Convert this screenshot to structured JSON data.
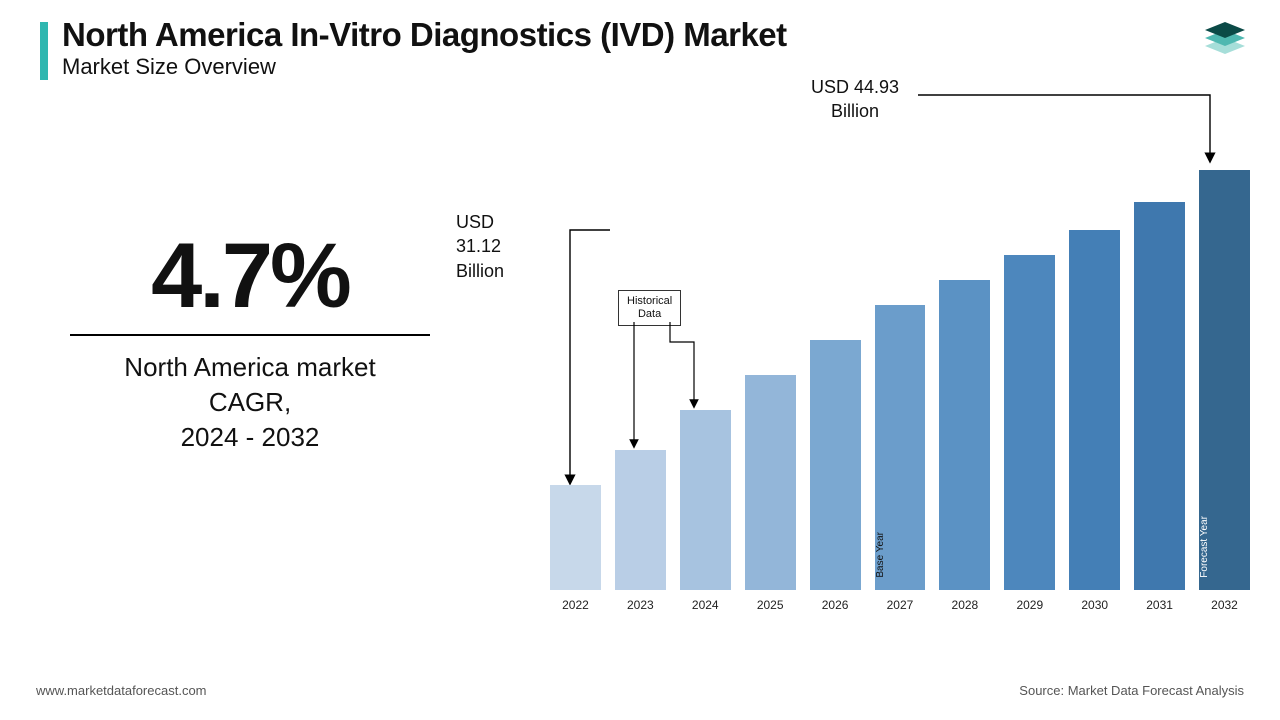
{
  "header": {
    "title": "North America In-Vitro Diagnostics (IVD) Market",
    "subtitle": "Market Size Overview",
    "accent_color": "#2fb7b0"
  },
  "cagr": {
    "value": "4.7%",
    "description_l1": "North America market",
    "description_l2": "CAGR,",
    "description_l3": "2024 - 2032"
  },
  "chart": {
    "type": "bar",
    "categories": [
      "2022",
      "2023",
      "2024",
      "2025",
      "2026",
      "2027",
      "2028",
      "2029",
      "2030",
      "2031",
      "2032"
    ],
    "heights": [
      105,
      140,
      180,
      215,
      250,
      285,
      310,
      335,
      360,
      388,
      420
    ],
    "bar_colors": [
      "#c7d8ea",
      "#b9cee6",
      "#a7c3e0",
      "#93b6d9",
      "#7ba8d1",
      "#6b9dcb",
      "#5b92c4",
      "#4d87bd",
      "#447fb6",
      "#3f78ae",
      "#35678f"
    ],
    "bar_labels": [
      "",
      "",
      "",
      "",
      "",
      "Base Year",
      "",
      "",
      "",
      "",
      "Forecast Year"
    ],
    "bar_label_colors": [
      "",
      "",
      "",
      "",
      "",
      "#111111",
      "",
      "",
      "",
      "",
      "#ffffff"
    ],
    "x_fontsize": 12,
    "background_color": "#ffffff"
  },
  "callouts": {
    "start": {
      "line1": "USD",
      "line2": "31.12",
      "line3": "Billion"
    },
    "end": {
      "line1": "USD 44.93",
      "line2": "Billion"
    },
    "historical_l1": "Historical",
    "historical_l2": "Data"
  },
  "footer": {
    "url": "www.marketdataforecast.com",
    "source": "Source: Market Data Forecast Analysis"
  },
  "logo_colors": {
    "top": "#0b4a47",
    "mid": "#4fb8b1",
    "bot": "#a6ded9"
  }
}
